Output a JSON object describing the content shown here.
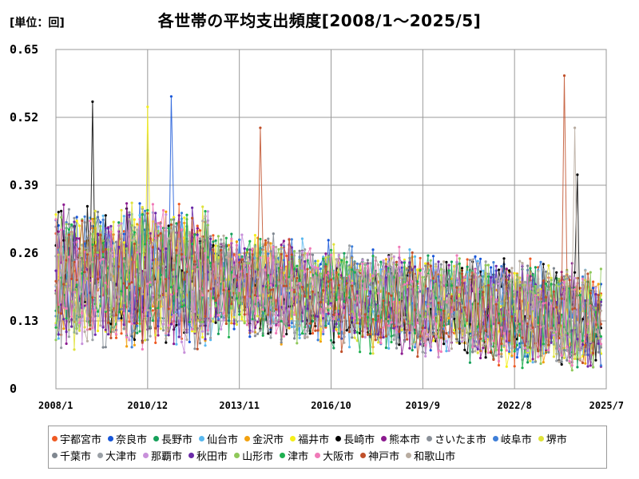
{
  "chart_data": {
    "type": "line",
    "title": "各世帯の平均支出頻度[2008/1～2025/5]",
    "unit_label": "[単位：回]",
    "xlabel": "",
    "ylabel": "",
    "x_range": [
      "2008/1",
      "2025/7"
    ],
    "x_ticks": [
      "2008/1",
      "2010/12",
      "2013/11",
      "2016/10",
      "2019/9",
      "2022/8",
      "2025/7"
    ],
    "ylim": [
      0,
      0.65
    ],
    "y_ticks": [
      "0",
      "0.13",
      "0.26",
      "0.39",
      "0.52",
      "0.65"
    ],
    "grid": true,
    "legend_position": "bottom",
    "series": [
      {
        "name": "宇都宮市",
        "color": "#ef5a23"
      },
      {
        "name": "奈良市",
        "color": "#1756d8"
      },
      {
        "name": "長野市",
        "color": "#16a05a"
      },
      {
        "name": "仙台市",
        "color": "#58b8ef"
      },
      {
        "name": "金沢市",
        "color": "#f2a10f"
      },
      {
        "name": "福井市",
        "color": "#f5ef19"
      },
      {
        "name": "長崎市",
        "color": "#000000"
      },
      {
        "name": "熊本市",
        "color": "#8b1a8f"
      },
      {
        "name": "さいたま市",
        "color": "#8a9098"
      },
      {
        "name": "岐阜市",
        "color": "#3f7fd8"
      },
      {
        "name": "堺市",
        "color": "#dfe23a"
      },
      {
        "name": "千葉市",
        "color": "#7f8790"
      },
      {
        "name": "大津市",
        "color": "#9aa0a6"
      },
      {
        "name": "那覇市",
        "color": "#c890da"
      },
      {
        "name": "秋田市",
        "color": "#6a2aa8"
      },
      {
        "name": "山形市",
        "color": "#8fc85a"
      },
      {
        "name": "津市",
        "color": "#1fb050"
      },
      {
        "name": "大阪市",
        "color": "#f07ab8"
      },
      {
        "name": "神戸市",
        "color": "#c0502a"
      },
      {
        "name": "和歌山市",
        "color": "#b8aca0"
      }
    ],
    "highlights": [
      {
        "series": "長崎市",
        "x": "2009/3",
        "y": 0.55
      },
      {
        "series": "奈良市",
        "x": "2011/9",
        "y": 0.56
      },
      {
        "series": "福井市",
        "x": "2010/12",
        "y": 0.54
      },
      {
        "series": "神戸市",
        "x": "2024/3",
        "y": 0.61
      },
      {
        "series": "和歌山市",
        "x": "2024/7",
        "y": 0.5
      },
      {
        "series": "神戸市",
        "x": "2014/7",
        "y": 0.5
      },
      {
        "series": "長崎市",
        "x": "2024/8",
        "y": 0.41
      }
    ]
  }
}
